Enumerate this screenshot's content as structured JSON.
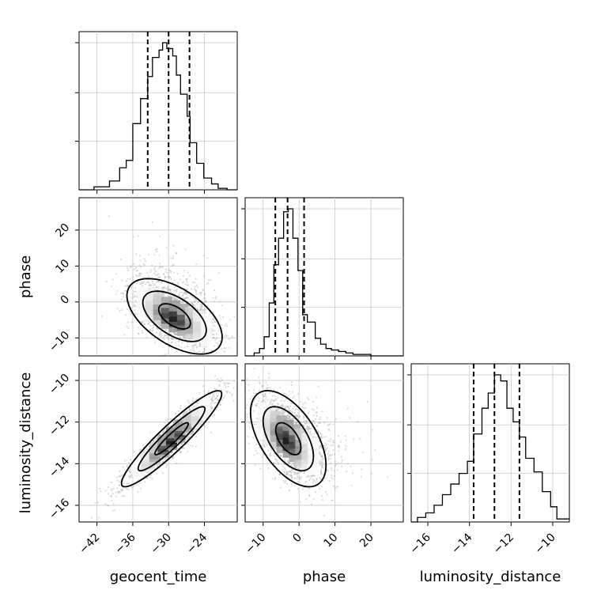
{
  "chart_data": {
    "type": "corner",
    "parameters": [
      "geocent_time",
      "phase",
      "luminosity_distance"
    ],
    "axis_labels": {
      "bottom": [
        "geocent_time",
        "phase",
        "luminosity_distance"
      ],
      "left": [
        "phase",
        "luminosity_distance"
      ]
    },
    "ranges": {
      "geocent_time": [
        -45,
        -18.5
      ],
      "phase": [
        -15,
        29
      ],
      "luminosity_distance": [
        -16.8,
        -9.2
      ]
    },
    "ticks": {
      "geocent_time": [
        -42,
        -36,
        -30,
        -24
      ],
      "phase": [
        -10,
        0,
        10,
        20
      ],
      "luminosity_distance": [
        -16,
        -14,
        -12,
        -10
      ]
    },
    "tick_labels": {
      "geocent_time": [
        "−42",
        "−36",
        "−30",
        "−24"
      ],
      "phase": [
        "−10",
        "0",
        "10",
        "20"
      ],
      "luminosity_distance": [
        "−16",
        "−14",
        "−12",
        "−10"
      ]
    },
    "grid": true,
    "histograms": [
      {
        "parameter": "geocent_time",
        "bin_edges": [
          -45,
          -42.5,
          -39.9,
          -38.2,
          -37.1,
          -36.0,
          -34.7,
          -33.5,
          -32.7,
          -31.6,
          -31.0,
          -30.3,
          -29.3,
          -28.7,
          -28.0,
          -26.9,
          -26.4,
          -25.3,
          -24.1,
          -22.8,
          -21.7,
          -20.2,
          -18.5
        ],
        "counts": [
          0,
          2,
          6,
          15,
          20,
          45,
          62,
          77,
          90,
          95,
          100,
          96,
          91,
          78,
          65,
          50,
          32,
          18,
          8,
          4,
          1,
          0
        ],
        "quantiles": [
          -33.5,
          -30.0,
          -26.5
        ]
      },
      {
        "parameter": "phase",
        "bin_edges": [
          -15,
          -12.5,
          -11,
          -9.7,
          -8.3,
          -7,
          -5.7,
          -4.3,
          -3.0,
          -1.7,
          -0.3,
          1.0,
          2.3,
          4.5,
          6.0,
          7.5,
          9.0,
          11,
          13,
          15,
          17,
          20,
          25,
          29
        ],
        "counts": [
          0,
          2,
          5,
          13,
          36,
          62,
          80,
          98,
          100,
          80,
          58,
          28,
          23,
          12,
          8,
          5,
          4,
          3,
          2,
          1,
          1,
          0,
          0
        ],
        "quantiles": [
          -6.6,
          -3.2,
          1.4
        ]
      },
      {
        "parameter": "luminosity_distance",
        "bin_edges": [
          -16.8,
          -16.5,
          -16.1,
          -15.7,
          -15.3,
          -14.9,
          -14.5,
          -14.1,
          -13.8,
          -13.4,
          -13.1,
          -12.8,
          -12.5,
          -12.2,
          -11.9,
          -11.6,
          -11.3,
          -10.9,
          -10.5,
          -10.1,
          -9.8,
          -9.2
        ],
        "counts": [
          0,
          3,
          6,
          11,
          18,
          25,
          32,
          40,
          58,
          75,
          85,
          97,
          93,
          75,
          66,
          56,
          42,
          33,
          20,
          10,
          2
        ],
        "quantiles": [
          -13.8,
          -12.8,
          -11.6
        ]
      }
    ],
    "joint_2d": [
      {
        "x_param": "geocent_time",
        "y_param": "phase",
        "mean": [
          -29.0,
          -4.0
        ],
        "sd": [
          3.8,
          5.0
        ],
        "rho": -0.55
      },
      {
        "x_param": "geocent_time",
        "y_param": "luminosity_distance",
        "mean": [
          -29.5,
          -12.8
        ],
        "sd": [
          4.0,
          1.1
        ],
        "rho": 0.93
      },
      {
        "x_param": "phase",
        "y_param": "luminosity_distance",
        "mean": [
          -3.0,
          -12.8
        ],
        "sd": [
          5.0,
          1.1
        ],
        "rho": -0.55
      }
    ]
  }
}
